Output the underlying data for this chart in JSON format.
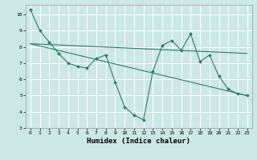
{
  "background_color": "#cce8e4",
  "grid_color": "#ffffff",
  "line_color": "#2d7a6e",
  "series1": {
    "x": [
      0,
      1,
      2,
      3,
      4,
      5,
      6,
      7,
      8,
      9,
      10,
      11,
      12,
      13,
      14,
      15,
      16,
      17,
      18,
      19,
      20,
      21,
      22,
      23
    ],
    "y": [
      10.3,
      9.0,
      8.3,
      7.6,
      7.0,
      6.8,
      6.7,
      7.3,
      7.5,
      5.8,
      4.3,
      3.8,
      3.5,
      6.5,
      8.1,
      8.4,
      7.8,
      8.8,
      7.1,
      7.5,
      6.2,
      5.4,
      5.1,
      5.0
    ]
  },
  "series_trend1": {
    "x": [
      0,
      23
    ],
    "y": [
      8.2,
      7.6
    ]
  },
  "series_trend2": {
    "x": [
      0,
      23
    ],
    "y": [
      8.2,
      5.0
    ]
  },
  "xlabel": "Humidex (Indice chaleur)",
  "xlim": [
    -0.5,
    23.5
  ],
  "ylim": [
    3,
    10.6
  ],
  "yticks": [
    3,
    4,
    5,
    6,
    7,
    8,
    9,
    10
  ],
  "xticks": [
    0,
    1,
    2,
    3,
    4,
    5,
    6,
    7,
    8,
    9,
    10,
    11,
    12,
    13,
    14,
    15,
    16,
    17,
    18,
    19,
    20,
    21,
    22,
    23
  ],
  "tick_fontsize": 4.5,
  "xlabel_fontsize": 6.5
}
